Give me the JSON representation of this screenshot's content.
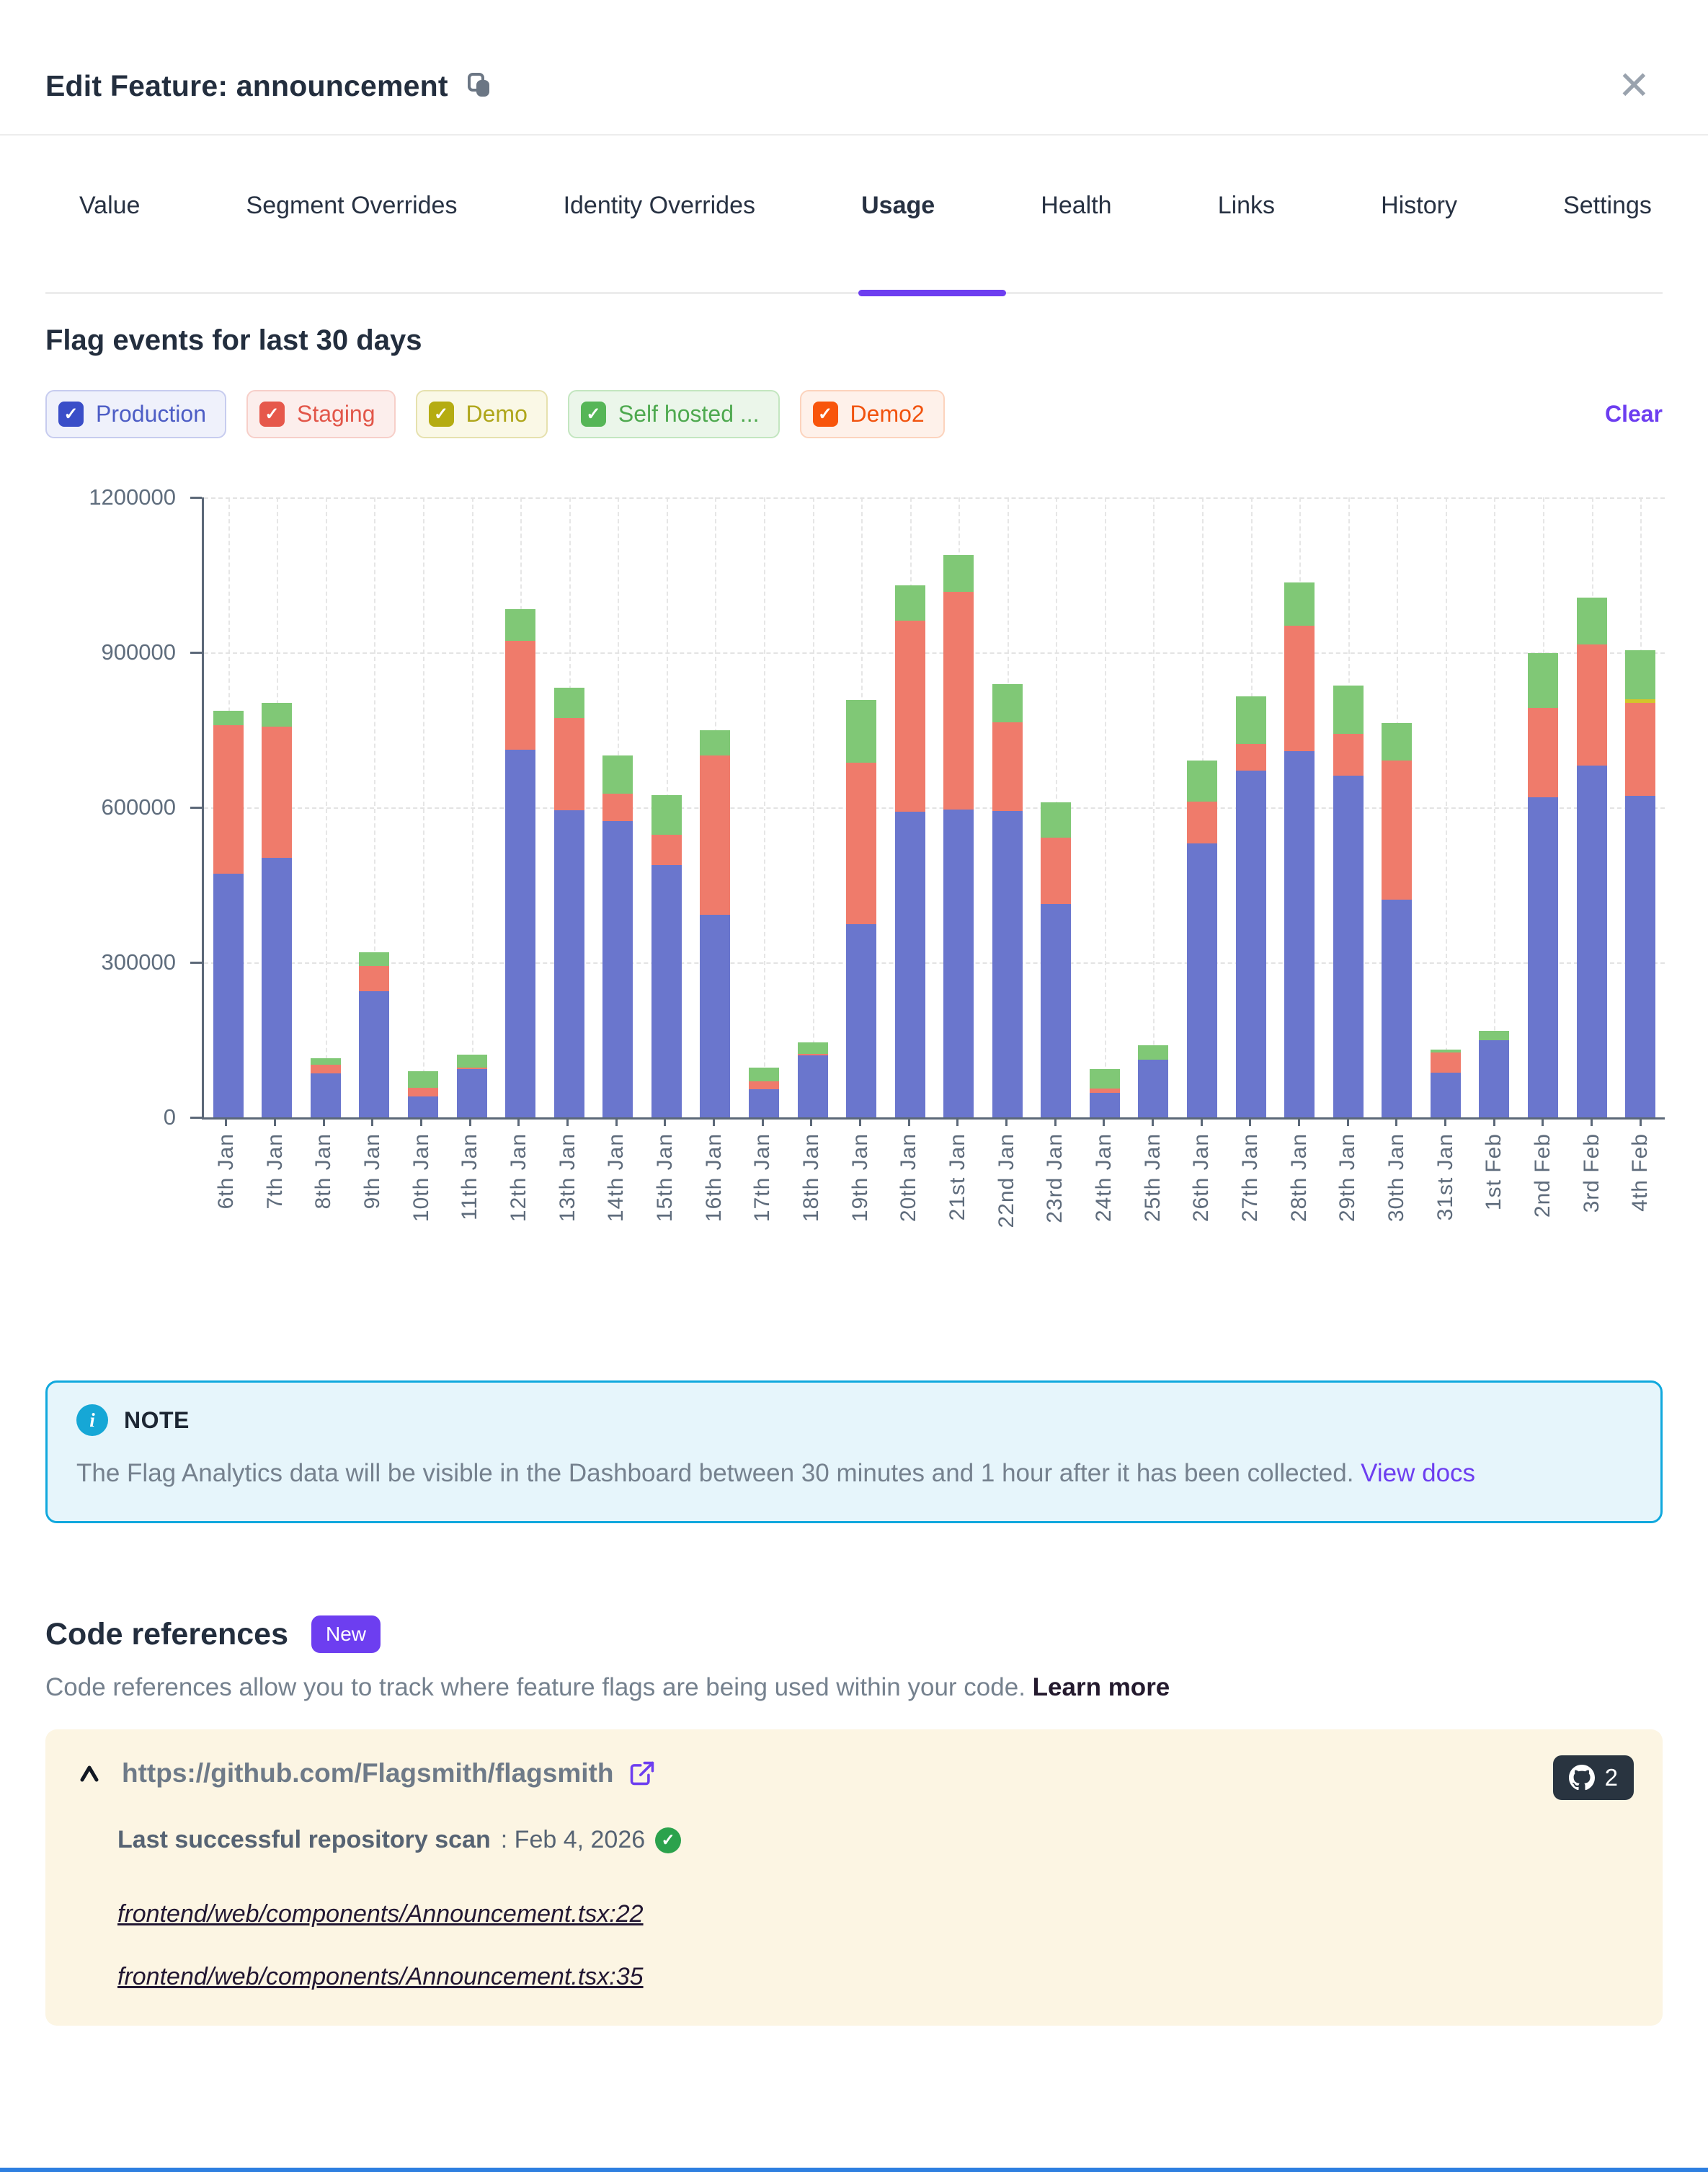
{
  "modal": {
    "title": "Edit Feature: announcement",
    "close_label": "✕"
  },
  "tabs": {
    "items": [
      {
        "label": "Value",
        "active": false
      },
      {
        "label": "Segment Overrides",
        "active": false
      },
      {
        "label": "Identity Overrides",
        "active": false
      },
      {
        "label": "Usage",
        "active": true
      },
      {
        "label": "Health",
        "active": false
      },
      {
        "label": "Links",
        "active": false
      },
      {
        "label": "History",
        "active": false
      },
      {
        "label": "Settings",
        "active": false
      }
    ]
  },
  "usage": {
    "heading": "Flag events for last 30 days",
    "clear_label": "Clear",
    "accent_color": "#6D3EF0",
    "environments": [
      {
        "label": "Production",
        "checked": true,
        "box": "#3A4EC8",
        "text": "#4D5DC5",
        "border": "#C7CCEF",
        "bg": "#EFF1FB"
      },
      {
        "label": "Staging",
        "checked": true,
        "box": "#E6584B",
        "text": "#E25649",
        "border": "#F7CFC9",
        "bg": "#FCEEEC"
      },
      {
        "label": "Demo",
        "checked": true,
        "box": "#B5AC12",
        "text": "#AFA61B",
        "border": "#E6E1AE",
        "bg": "#FAF8E6"
      },
      {
        "label": "Self hosted ...",
        "checked": true,
        "box": "#56B657",
        "text": "#4EA94F",
        "border": "#C3E6C0",
        "bg": "#EBF6EA"
      },
      {
        "label": "Demo2",
        "checked": true,
        "box": "#F8550C",
        "text": "#F1530E",
        "border": "#FCD3BD",
        "bg": "#FEF1EA"
      }
    ]
  },
  "chart_data": {
    "type": "bar",
    "stacked": true,
    "title": "Flag events for last 30 days",
    "xlabel": "",
    "ylabel": "",
    "ylim": [
      0,
      1200000
    ],
    "yticks": [
      0,
      300000,
      600000,
      900000,
      1200000
    ],
    "grid": true,
    "x": [
      "6th Jan",
      "7th Jan",
      "8th Jan",
      "9th Jan",
      "10th Jan",
      "11th Jan",
      "12th Jan",
      "13th Jan",
      "14th Jan",
      "15th Jan",
      "16th Jan",
      "17th Jan",
      "18th Jan",
      "19th Jan",
      "20th Jan",
      "21st Jan",
      "22nd Jan",
      "23rd Jan",
      "24th Jan",
      "25th Jan",
      "26th Jan",
      "27th Jan",
      "28th Jan",
      "29th Jan",
      "30th Jan",
      "31st Jan",
      "1st Feb",
      "2nd Feb",
      "3rd Feb",
      "4th Feb"
    ],
    "series": [
      {
        "name": "Production",
        "color": "#6A76CD",
        "values": [
          472000,
          503000,
          85000,
          244000,
          40000,
          94000,
          712000,
          595000,
          573000,
          488000,
          392000,
          55000,
          120000,
          374000,
          591000,
          596000,
          593000,
          413000,
          48000,
          112000,
          530000,
          671000,
          709000,
          661000,
          422000,
          86000,
          149000,
          620000,
          681000,
          623000
        ]
      },
      {
        "name": "Staging",
        "color": "#EF7B6B",
        "values": [
          287000,
          254000,
          17000,
          49000,
          17000,
          3000,
          211000,
          178000,
          54000,
          59000,
          309000,
          15000,
          3000,
          313000,
          370000,
          421000,
          172000,
          129000,
          8000,
          0,
          81000,
          52000,
          243000,
          82000,
          269000,
          39000,
          0,
          173000,
          234000,
          180000
        ]
      },
      {
        "name": "Demo",
        "color": "#D2C62B",
        "values": [
          0,
          0,
          0,
          0,
          0,
          0,
          0,
          0,
          0,
          0,
          0,
          0,
          0,
          0,
          0,
          0,
          0,
          0,
          0,
          0,
          0,
          0,
          0,
          0,
          0,
          0,
          0,
          0,
          0,
          6000
        ]
      },
      {
        "name": "Self hosted ...",
        "color": "#80C876",
        "values": [
          28000,
          46000,
          12000,
          27000,
          32000,
          25000,
          61000,
          59000,
          74000,
          77000,
          48000,
          26000,
          22000,
          121000,
          69000,
          72000,
          74000,
          68000,
          38000,
          28000,
          80000,
          92000,
          84000,
          93000,
          72000,
          6000,
          19000,
          105000,
          91000,
          95000
        ]
      },
      {
        "name": "Demo2",
        "color": "#F5540E",
        "values": [
          0,
          0,
          0,
          0,
          0,
          0,
          0,
          0,
          0,
          0,
          0,
          0,
          0,
          0,
          0,
          0,
          0,
          0,
          0,
          0,
          0,
          0,
          0,
          0,
          0,
          0,
          0,
          0,
          0,
          0
        ]
      }
    ],
    "legend_position": "top-left-chips"
  },
  "note": {
    "title": "NOTE",
    "body": "The Flag Analytics data will be visible in the Dashboard between 30 minutes and 1 hour after it has been collected. ",
    "link_label": "View docs"
  },
  "code_references": {
    "heading": "Code references",
    "badge": "New",
    "description": "Code references allow you to track where feature flags are being used within your code. ",
    "learn_more_label": "Learn more",
    "repo": {
      "url": "https://github.com/Flagsmith/flagsmith",
      "github_count": "2",
      "scan_label": "Last successful repository scan",
      "scan_value": ": Feb 4, 2026",
      "files": [
        "frontend/web/components/Announcement.tsx:22",
        "frontend/web/components/Announcement.tsx:35"
      ]
    }
  }
}
